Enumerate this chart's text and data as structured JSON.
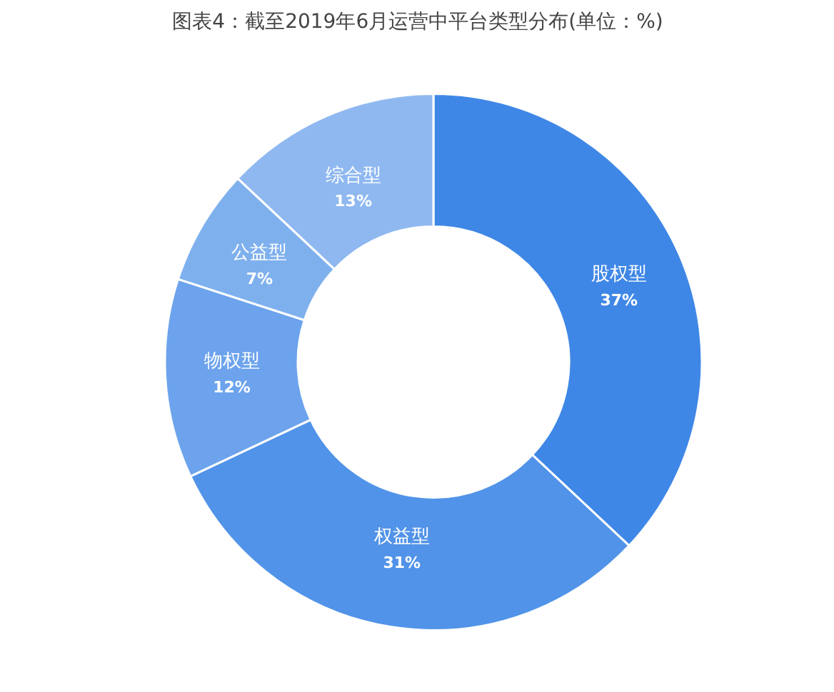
{
  "chart_data": {
    "type": "donut",
    "title": "图表4：截至2019年6月运营中平台类型分布(单位：%)",
    "categories": [
      "股权型",
      "权益型",
      "物权型",
      "公益型",
      "综合型"
    ],
    "values": [
      37,
      31,
      12,
      7,
      13
    ],
    "colors": [
      "#3f87e6",
      "#5193e8",
      "#6ca3ec",
      "#7fb0ee",
      "#8fb8f0"
    ],
    "value_labels": [
      "37%",
      "31%",
      "12%",
      "7%",
      "13%"
    ]
  }
}
